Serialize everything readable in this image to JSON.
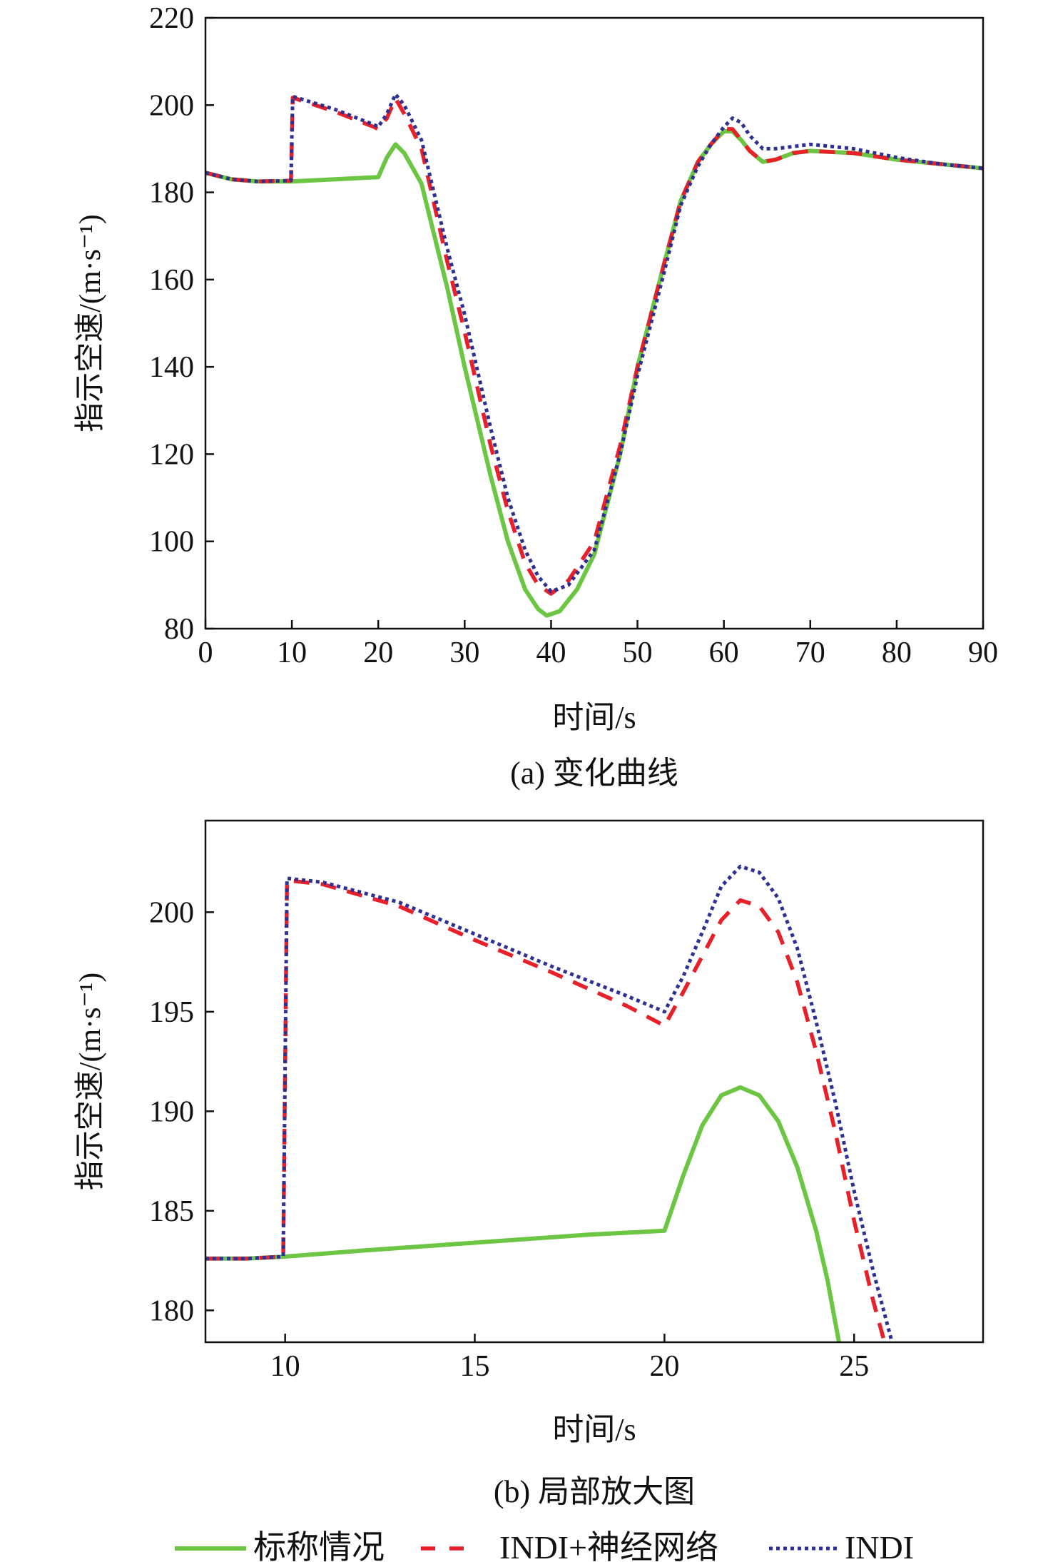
{
  "colors": {
    "nominal": "#6cc644",
    "indi_nn": "#e8202a",
    "indi": "#2e3192"
  },
  "legend": {
    "nominal": "标称情况",
    "indi_nn": "INDI+神经网络",
    "indi": "INDI"
  },
  "chart_data": [
    {
      "type": "line",
      "title": "(a) 变化曲线",
      "xlabel": "时间/s",
      "ylabel": "指示空速/(m·s⁻¹)",
      "xlim": [
        0,
        90
      ],
      "ylim": [
        80,
        220
      ],
      "xticks": [
        0,
        10,
        20,
        30,
        40,
        50,
        60,
        70,
        80,
        90
      ],
      "yticks": [
        80,
        100,
        120,
        140,
        160,
        180,
        200,
        220
      ],
      "grid": false,
      "series": [
        {
          "name": "标称情况",
          "key": "nominal",
          "x": [
            0,
            3,
            6,
            10,
            15,
            20,
            21,
            22,
            23,
            25,
            28,
            30,
            33,
            35,
            37,
            38.5,
            39.5,
            41,
            43,
            45,
            48,
            50,
            53,
            55,
            57,
            58.5,
            60,
            61,
            62,
            63,
            64.5,
            66,
            68,
            70,
            75,
            80,
            85,
            90
          ],
          "y": [
            184.5,
            183,
            182.5,
            182.5,
            183,
            183.5,
            188,
            191,
            189,
            182,
            158,
            140,
            115,
            100,
            89,
            84.5,
            83,
            84,
            89,
            97,
            120,
            140,
            163,
            178,
            187,
            191,
            194,
            194,
            192,
            189.5,
            187,
            187.5,
            189,
            189.5,
            189,
            187.5,
            186.5,
            185.5
          ]
        },
        {
          "name": "INDI+神经网络",
          "key": "indi_nn",
          "x": [
            0,
            3,
            6,
            9.9,
            10.1,
            15,
            19.5,
            20,
            21,
            22,
            23,
            25,
            28,
            30,
            33,
            35,
            37,
            38.5,
            40,
            42,
            45,
            48,
            50,
            53,
            55,
            57,
            58.5,
            60,
            61,
            62,
            63,
            64.5,
            66,
            68,
            70,
            75,
            80,
            85,
            90
          ],
          "y": [
            184.5,
            183,
            182.5,
            182.7,
            201.7,
            198.5,
            195,
            194.5,
            197,
            201.5,
            198,
            190,
            164,
            148,
            122,
            107,
            95,
            90,
            88,
            91,
            100,
            122,
            140,
            163,
            178,
            187,
            191,
            194.5,
            194.5,
            192,
            189.5,
            187,
            187.5,
            189,
            189.5,
            189,
            187.5,
            186.5,
            185.5
          ]
        },
        {
          "name": "INDI",
          "key": "indi",
          "x": [
            0,
            3,
            6,
            9.9,
            10.1,
            15,
            19.5,
            20,
            21,
            22,
            23,
            25,
            28,
            30,
            33,
            35,
            37,
            38.5,
            40,
            42,
            45,
            48,
            50,
            53,
            55,
            57,
            58.5,
            60,
            61,
            62,
            63,
            64.5,
            66,
            68,
            70,
            75,
            80,
            85,
            90
          ],
          "y": [
            184.5,
            183,
            182.5,
            182.7,
            202,
            199,
            195.5,
            195,
            198,
            202.5,
            200,
            192,
            167,
            152,
            126,
            110,
            98,
            92,
            88.5,
            90,
            98,
            120,
            138,
            161,
            177,
            186,
            191,
            195,
            197,
            196,
            193,
            190,
            190,
            190.5,
            191,
            190,
            188,
            186.5,
            185.5
          ]
        }
      ]
    },
    {
      "type": "line",
      "title": "(b) 局部放大图",
      "xlabel": "时间/s",
      "ylabel": "指示空速/(m·s⁻¹)",
      "xlim": [
        7.9,
        28.4
      ],
      "ylim": [
        178.4,
        204.6
      ],
      "xticks": [
        10,
        15,
        20,
        25
      ],
      "yticks": [
        180,
        185,
        190,
        195,
        200
      ],
      "grid": false,
      "series": [
        {
          "name": "标称情况",
          "key": "nominal",
          "x": [
            7.9,
            9,
            10,
            12,
            15,
            18,
            20,
            20.5,
            21,
            21.5,
            22,
            22.5,
            23,
            23.5,
            24,
            24.3,
            24.6
          ],
          "y": [
            182.6,
            182.6,
            182.7,
            183,
            183.4,
            183.8,
            184,
            186.8,
            189.3,
            190.8,
            191.2,
            190.8,
            189.5,
            187.2,
            184,
            181.5,
            178.4
          ]
        },
        {
          "name": "INDI+神经网络",
          "key": "indi_nn",
          "x": [
            7.9,
            9,
            9.95,
            10.05,
            11,
            13,
            15,
            17,
            19,
            20,
            20.5,
            21,
            21.5,
            22,
            22.5,
            23,
            23.5,
            24,
            24.5,
            25,
            25.5,
            25.8
          ],
          "y": [
            182.6,
            182.6,
            182.7,
            201.6,
            201.4,
            200.3,
            198.6,
            197,
            195.3,
            194.3,
            196,
            197.8,
            199.6,
            200.6,
            200.3,
            199,
            196.5,
            193,
            189,
            184.5,
            180.5,
            178.4
          ]
        },
        {
          "name": "INDI",
          "key": "indi",
          "x": [
            7.9,
            9,
            9.95,
            10.05,
            11,
            13,
            15,
            17,
            19,
            20,
            20.5,
            21,
            21.5,
            22,
            22.5,
            23,
            23.5,
            24,
            24.5,
            25,
            25.5,
            26
          ],
          "y": [
            182.6,
            182.6,
            182.7,
            201.7,
            201.5,
            200.5,
            198.9,
            197.3,
            195.8,
            195,
            196.8,
            199,
            201.3,
            202.3,
            202,
            200.7,
            198.2,
            194.5,
            190.5,
            186,
            182,
            178.4
          ]
        }
      ]
    }
  ]
}
